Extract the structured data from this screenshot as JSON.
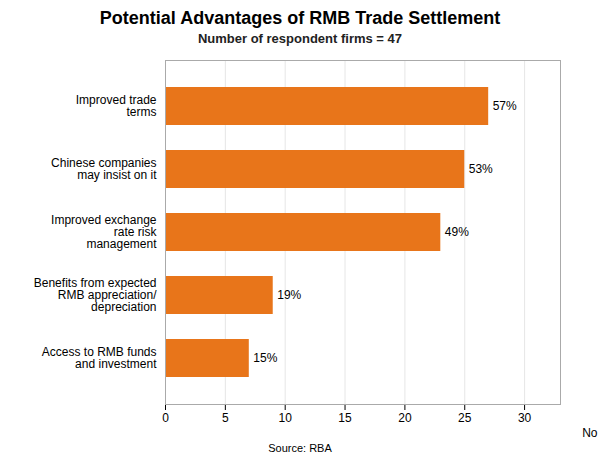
{
  "chart_data": {
    "type": "bar",
    "orientation": "horizontal",
    "title": "Potential Advantages of RMB Trade Settlement",
    "subtitle": "Number of respondent firms = 47",
    "source": "Source: RBA",
    "xlabel": "No",
    "categories": [
      "Access to RMB funds\nand investment",
      "Benefits from expected\nRMB appreciation/\ndepreciation",
      "Improved exchange\nrate risk\nmanagement",
      "Chinese companies\nmay insist on it",
      "Improved trade\nterms"
    ],
    "values": [
      7,
      9,
      23,
      25,
      27
    ],
    "percentages": [
      "15%",
      "19%",
      "49%",
      "53%",
      "57%"
    ],
    "color": "#E8751A",
    "xlim": [
      0,
      33
    ],
    "xticks": [
      0,
      5,
      10,
      15,
      20,
      25,
      30
    ],
    "grid": true
  }
}
